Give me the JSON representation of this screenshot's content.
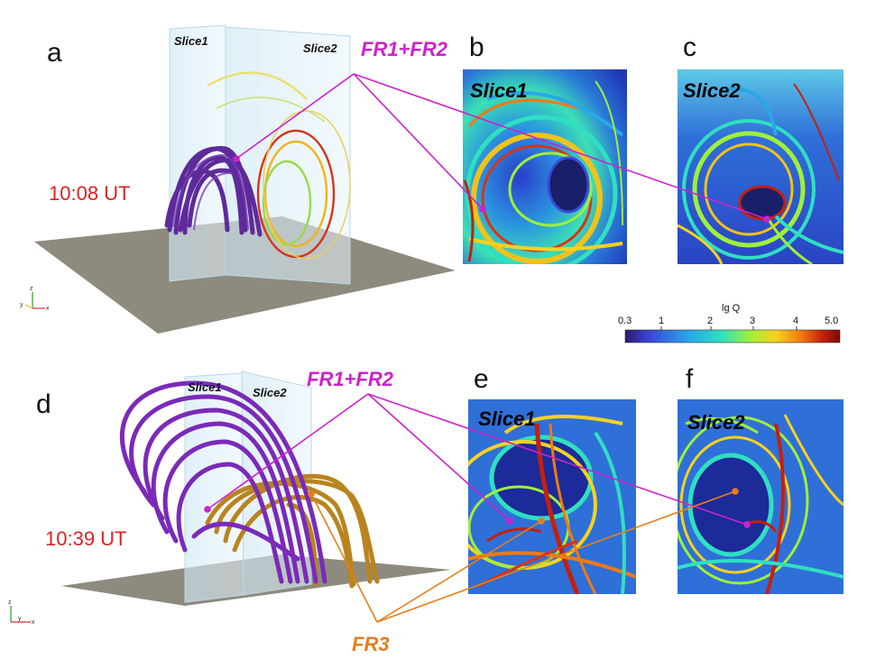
{
  "figure": {
    "panels": {
      "a": {
        "letter": "a",
        "time": "10:08 UT",
        "slice1": "Slice1",
        "slice2": "Slice2"
      },
      "b": {
        "letter": "b",
        "slice": "Slice1"
      },
      "c": {
        "letter": "c",
        "slice": "Slice2"
      },
      "d": {
        "letter": "d",
        "time": "10:39 UT",
        "slice1": "Slice1",
        "slice2": "Slice2"
      },
      "e": {
        "letter": "e",
        "slice": "Slice1"
      },
      "f": {
        "letter": "f",
        "slice": "Slice2"
      }
    },
    "annotations": {
      "fr12_top": "FR1+FR2",
      "fr12_bottom": "FR1+FR2",
      "fr3": "FR3"
    },
    "colorbar": {
      "title": "lg Q",
      "ticks": [
        "0.3",
        "1",
        "2",
        "3",
        "4",
        "5.0"
      ],
      "colors": [
        "#2b1a6e",
        "#3b4bd8",
        "#2aa7e8",
        "#2fe0c0",
        "#9ef03a",
        "#f6d21e",
        "#f27a12",
        "#c3200e",
        "#7a0b05"
      ]
    },
    "axis_triad": {
      "x": "x",
      "y": "y",
      "z": "z"
    },
    "colors": {
      "magenta": "#cc22cc",
      "orange": "#e87e1c",
      "time_red": "#e02020",
      "purple_rope": "#6a2aa8",
      "gold_rope": "#b9841e",
      "floor": "#8e8a7e"
    }
  }
}
